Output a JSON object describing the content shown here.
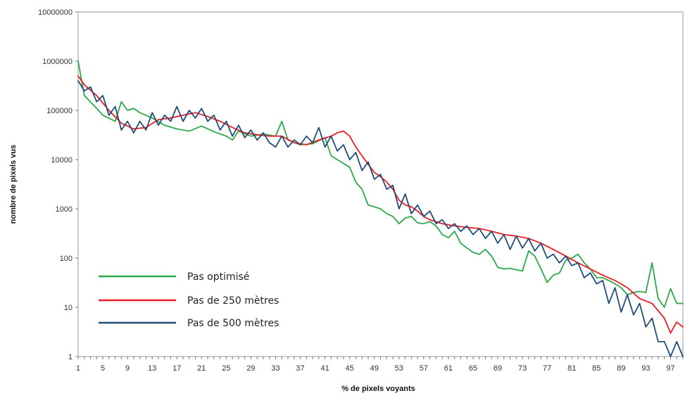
{
  "chart_data": {
    "type": "line",
    "xlabel": "% de pixels voyants",
    "ylabel": "nombre de pixels vus",
    "yscale": "log",
    "ylim": [
      1,
      10000000
    ],
    "xlim": [
      1,
      99
    ],
    "grid": false,
    "legend_position": "bottom-left",
    "y_ticks": [
      "10000000",
      "1000000",
      "100000",
      "10000",
      "1000",
      "100",
      "10",
      "1"
    ],
    "x_ticks": [
      "1",
      "5",
      "9",
      "13",
      "17",
      "21",
      "25",
      "29",
      "33",
      "37",
      "41",
      "45",
      "49",
      "53",
      "57",
      "61",
      "65",
      "69",
      "73",
      "77",
      "81",
      "85",
      "89",
      "93",
      "97"
    ],
    "series": [
      {
        "name": "Pas optimisé",
        "color": "#2ca84a",
        "points": [
          [
            1,
            1000000
          ],
          [
            2,
            200000
          ],
          [
            4,
            110000
          ],
          [
            5,
            80000
          ],
          [
            7,
            60000
          ],
          [
            8,
            150000
          ],
          [
            9,
            100000
          ],
          [
            10,
            110000
          ],
          [
            11,
            90000
          ],
          [
            13,
            70000
          ],
          [
            15,
            50000
          ],
          [
            17,
            42000
          ],
          [
            19,
            38000
          ],
          [
            21,
            48000
          ],
          [
            23,
            37000
          ],
          [
            25,
            30000
          ],
          [
            26,
            25000
          ],
          [
            27,
            38000
          ],
          [
            29,
            30000
          ],
          [
            31,
            33000
          ],
          [
            33,
            30000
          ],
          [
            34,
            60000
          ],
          [
            35,
            25000
          ],
          [
            37,
            20000
          ],
          [
            39,
            21000
          ],
          [
            41,
            28000
          ],
          [
            42,
            12000
          ],
          [
            43,
            10000
          ],
          [
            45,
            7000
          ],
          [
            46,
            3500
          ],
          [
            47,
            2500
          ],
          [
            48,
            1200
          ],
          [
            49,
            1100
          ],
          [
            50,
            1000
          ],
          [
            51,
            800
          ],
          [
            52,
            700
          ],
          [
            53,
            500
          ],
          [
            54,
            650
          ],
          [
            55,
            700
          ],
          [
            56,
            520
          ],
          [
            57,
            500
          ],
          [
            58,
            550
          ],
          [
            59,
            450
          ],
          [
            60,
            300
          ],
          [
            61,
            260
          ],
          [
            62,
            350
          ],
          [
            63,
            200
          ],
          [
            64,
            160
          ],
          [
            65,
            130
          ],
          [
            66,
            120
          ],
          [
            67,
            150
          ],
          [
            68,
            110
          ],
          [
            69,
            65
          ],
          [
            70,
            60
          ],
          [
            71,
            62
          ],
          [
            72,
            58
          ],
          [
            73,
            55
          ],
          [
            74,
            140
          ],
          [
            75,
            110
          ],
          [
            76,
            60
          ],
          [
            77,
            32
          ],
          [
            78,
            45
          ],
          [
            79,
            50
          ],
          [
            80,
            90
          ],
          [
            81,
            100
          ],
          [
            82,
            120
          ],
          [
            83,
            80
          ],
          [
            84,
            60
          ],
          [
            85,
            40
          ],
          [
            86,
            40
          ],
          [
            87,
            35
          ],
          [
            88,
            30
          ],
          [
            89,
            25
          ],
          [
            90,
            18
          ],
          [
            91,
            20
          ],
          [
            92,
            21
          ],
          [
            93,
            20
          ],
          [
            94,
            80
          ],
          [
            95,
            15
          ],
          [
            96,
            10
          ],
          [
            97,
            24
          ],
          [
            98,
            12
          ],
          [
            99,
            12
          ]
        ]
      },
      {
        "name": "Pas de 250 mètres",
        "color": "#ee1c25",
        "points": [
          [
            1,
            500000
          ],
          [
            2,
            330000
          ],
          [
            4,
            200000
          ],
          [
            6,
            100000
          ],
          [
            8,
            55000
          ],
          [
            10,
            42000
          ],
          [
            12,
            45000
          ],
          [
            14,
            65000
          ],
          [
            16,
            70000
          ],
          [
            18,
            80000
          ],
          [
            20,
            90000
          ],
          [
            22,
            75000
          ],
          [
            24,
            60000
          ],
          [
            26,
            45000
          ],
          [
            28,
            35000
          ],
          [
            30,
            32000
          ],
          [
            32,
            30000
          ],
          [
            34,
            30000
          ],
          [
            36,
            22000
          ],
          [
            38,
            20000
          ],
          [
            40,
            25000
          ],
          [
            42,
            30000
          ],
          [
            43,
            35000
          ],
          [
            44,
            38000
          ],
          [
            45,
            30000
          ],
          [
            46,
            18000
          ],
          [
            47,
            12000
          ],
          [
            48,
            8000
          ],
          [
            49,
            5500
          ],
          [
            50,
            4500
          ],
          [
            51,
            3500
          ],
          [
            52,
            2500
          ],
          [
            53,
            1500
          ],
          [
            54,
            1200
          ],
          [
            55,
            1100
          ],
          [
            56,
            900
          ],
          [
            57,
            700
          ],
          [
            58,
            600
          ],
          [
            60,
            500
          ],
          [
            62,
            450
          ],
          [
            64,
            420
          ],
          [
            66,
            400
          ],
          [
            68,
            350
          ],
          [
            70,
            300
          ],
          [
            72,
            280
          ],
          [
            74,
            250
          ],
          [
            76,
            200
          ],
          [
            78,
            150
          ],
          [
            80,
            110
          ],
          [
            82,
            80
          ],
          [
            84,
            60
          ],
          [
            86,
            45
          ],
          [
            88,
            35
          ],
          [
            90,
            25
          ],
          [
            92,
            15
          ],
          [
            94,
            12
          ],
          [
            96,
            6
          ],
          [
            97,
            3
          ],
          [
            98,
            5
          ],
          [
            99,
            4
          ]
        ]
      },
      {
        "name": "Pas de 500 mètres",
        "color": "#1f4e79",
        "points": [
          [
            1,
            400000
          ],
          [
            2,
            250000
          ],
          [
            3,
            300000
          ],
          [
            4,
            150000
          ],
          [
            5,
            200000
          ],
          [
            6,
            80000
          ],
          [
            7,
            120000
          ],
          [
            8,
            40000
          ],
          [
            9,
            60000
          ],
          [
            10,
            35000
          ],
          [
            11,
            60000
          ],
          [
            12,
            40000
          ],
          [
            13,
            90000
          ],
          [
            14,
            50000
          ],
          [
            15,
            80000
          ],
          [
            16,
            60000
          ],
          [
            17,
            120000
          ],
          [
            18,
            60000
          ],
          [
            19,
            100000
          ],
          [
            20,
            70000
          ],
          [
            21,
            110000
          ],
          [
            22,
            60000
          ],
          [
            23,
            80000
          ],
          [
            24,
            40000
          ],
          [
            25,
            60000
          ],
          [
            26,
            30000
          ],
          [
            27,
            50000
          ],
          [
            28,
            28000
          ],
          [
            29,
            40000
          ],
          [
            30,
            25000
          ],
          [
            31,
            35000
          ],
          [
            32,
            22000
          ],
          [
            33,
            18000
          ],
          [
            34,
            30000
          ],
          [
            35,
            18000
          ],
          [
            36,
            25000
          ],
          [
            37,
            20000
          ],
          [
            38,
            30000
          ],
          [
            39,
            22000
          ],
          [
            40,
            45000
          ],
          [
            41,
            18000
          ],
          [
            42,
            30000
          ],
          [
            43,
            15000
          ],
          [
            44,
            20000
          ],
          [
            45,
            10000
          ],
          [
            46,
            14000
          ],
          [
            47,
            6000
          ],
          [
            48,
            9000
          ],
          [
            49,
            4000
          ],
          [
            50,
            5000
          ],
          [
            51,
            2500
          ],
          [
            52,
            3000
          ],
          [
            53,
            1000
          ],
          [
            54,
            2000
          ],
          [
            55,
            800
          ],
          [
            56,
            1200
          ],
          [
            57,
            700
          ],
          [
            58,
            900
          ],
          [
            59,
            500
          ],
          [
            60,
            600
          ],
          [
            61,
            400
          ],
          [
            62,
            500
          ],
          [
            63,
            350
          ],
          [
            64,
            450
          ],
          [
            65,
            300
          ],
          [
            66,
            400
          ],
          [
            67,
            250
          ],
          [
            68,
            350
          ],
          [
            69,
            200
          ],
          [
            70,
            300
          ],
          [
            71,
            150
          ],
          [
            72,
            280
          ],
          [
            73,
            160
          ],
          [
            74,
            250
          ],
          [
            75,
            140
          ],
          [
            76,
            200
          ],
          [
            77,
            100
          ],
          [
            78,
            120
          ],
          [
            79,
            80
          ],
          [
            80,
            110
          ],
          [
            81,
            70
          ],
          [
            82,
            80
          ],
          [
            83,
            40
          ],
          [
            84,
            50
          ],
          [
            85,
            30
          ],
          [
            86,
            35
          ],
          [
            87,
            12
          ],
          [
            88,
            25
          ],
          [
            89,
            8
          ],
          [
            90,
            18
          ],
          [
            91,
            7
          ],
          [
            92,
            12
          ],
          [
            93,
            4
          ],
          [
            94,
            6
          ],
          [
            95,
            2
          ],
          [
            96,
            2
          ],
          [
            97,
            1
          ],
          [
            98,
            2
          ],
          [
            99,
            1
          ]
        ]
      }
    ]
  }
}
